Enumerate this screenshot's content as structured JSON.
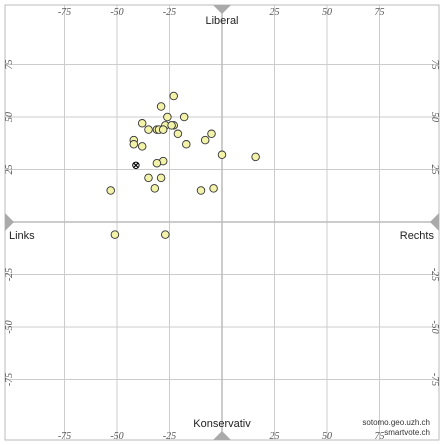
{
  "chart_data": {
    "type": "scatter",
    "xlim": [
      -100,
      100
    ],
    "ylim": [
      -100,
      100
    ],
    "x_ticks": [
      -75,
      -50,
      -25,
      25,
      50,
      75
    ],
    "y_ticks": [
      75,
      50,
      25,
      -25,
      -50,
      -75
    ],
    "labels": {
      "top": "Liberal",
      "bottom": "Konservativ",
      "left": "Links",
      "right": "Rechts"
    },
    "credit": [
      "sotomo.geo.uzh.ch",
      "smartvote.ch"
    ],
    "grid": true,
    "colors": {
      "point_fill": "#f2f2a8",
      "point_stroke": "#333333",
      "grid": "#cccccc",
      "axis": "#bbbbbb",
      "marker": "#aaaaaa"
    },
    "points": [
      {
        "x": -23,
        "y": 60
      },
      {
        "x": -29,
        "y": 55
      },
      {
        "x": -26,
        "y": 50
      },
      {
        "x": -18,
        "y": 50
      },
      {
        "x": -38,
        "y": 47
      },
      {
        "x": -27,
        "y": 46
      },
      {
        "x": -23,
        "y": 46
      },
      {
        "x": -24,
        "y": 46
      },
      {
        "x": -35,
        "y": 44
      },
      {
        "x": -31,
        "y": 44
      },
      {
        "x": -30,
        "y": 44
      },
      {
        "x": -28,
        "y": 44
      },
      {
        "x": -21,
        "y": 42
      },
      {
        "x": -5,
        "y": 42
      },
      {
        "x": -42,
        "y": 39
      },
      {
        "x": -8,
        "y": 39
      },
      {
        "x": -42,
        "y": 37
      },
      {
        "x": -17,
        "y": 37
      },
      {
        "x": -38,
        "y": 36
      },
      {
        "x": 0,
        "y": 32
      },
      {
        "x": 16,
        "y": 31
      },
      {
        "x": -28,
        "y": 29
      },
      {
        "x": -31,
        "y": 28
      },
      {
        "x": -35,
        "y": 21
      },
      {
        "x": -29,
        "y": 21
      },
      {
        "x": -32,
        "y": 16
      },
      {
        "x": -4,
        "y": 16
      },
      {
        "x": -10,
        "y": 15
      },
      {
        "x": -53,
        "y": 15
      },
      {
        "x": -51,
        "y": -6
      },
      {
        "x": -27,
        "y": -6
      }
    ],
    "highlight": {
      "x": -41,
      "y": 27
    }
  }
}
